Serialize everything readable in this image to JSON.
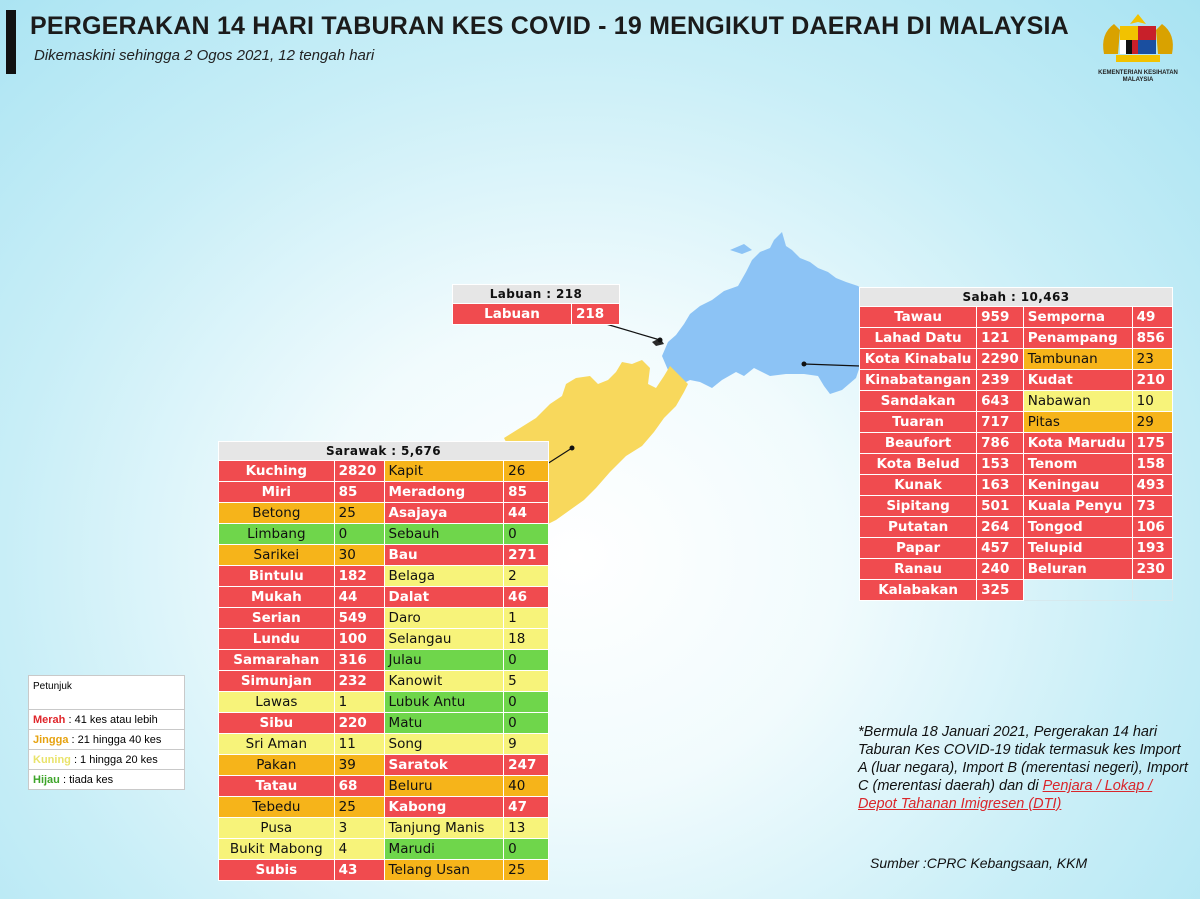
{
  "header": {
    "title": "PERGERAKAN 14 HARI TABURAN KES COVID - 19 MENGIKUT DAERAH DI MALAYSIA",
    "subtitle": "Dikemaskini sehingga 2 Ogos 2021, 12 tengah hari",
    "crest_caption": "KEMENTERIAN KESIHATAN MALAYSIA"
  },
  "colors": {
    "sabah_land": "#8cc3f5",
    "sarawak_land": "#f8d85c",
    "red": "#f04b4f",
    "orange": "#f6b41a",
    "yellow": "#f7f37a",
    "green": "#6fd64b"
  },
  "labuan": {
    "heading": "Labuan : 218",
    "rows": [
      {
        "name": "Labuan",
        "value": "218",
        "level": "red"
      }
    ]
  },
  "sabah": {
    "heading": "Sabah : 10,463",
    "rows": [
      [
        {
          "name": "Tawau",
          "value": "959",
          "level": "red"
        },
        {
          "name": "Semporna",
          "value": "49",
          "level": "red"
        }
      ],
      [
        {
          "name": "Lahad Datu",
          "value": "121",
          "level": "red"
        },
        {
          "name": "Penampang",
          "value": "856",
          "level": "red"
        }
      ],
      [
        {
          "name": "Kota Kinabalu",
          "value": "2290",
          "level": "red"
        },
        {
          "name": "Tambunan",
          "value": "23",
          "level": "orange"
        }
      ],
      [
        {
          "name": "Kinabatangan",
          "value": "239",
          "level": "red"
        },
        {
          "name": "Kudat",
          "value": "210",
          "level": "red"
        }
      ],
      [
        {
          "name": "Sandakan",
          "value": "643",
          "level": "red"
        },
        {
          "name": "Nabawan",
          "value": "10",
          "level": "yellow"
        }
      ],
      [
        {
          "name": "Tuaran",
          "value": "717",
          "level": "red"
        },
        {
          "name": "Pitas",
          "value": "29",
          "level": "orange"
        }
      ],
      [
        {
          "name": "Beaufort",
          "value": "786",
          "level": "red"
        },
        {
          "name": "Kota Marudu",
          "value": "175",
          "level": "red"
        }
      ],
      [
        {
          "name": "Kota Belud",
          "value": "153",
          "level": "red"
        },
        {
          "name": "Tenom",
          "value": "158",
          "level": "red"
        }
      ],
      [
        {
          "name": "Kunak",
          "value": "163",
          "level": "red"
        },
        {
          "name": "Keningau",
          "value": "493",
          "level": "red"
        }
      ],
      [
        {
          "name": "Sipitang",
          "value": "501",
          "level": "red"
        },
        {
          "name": "Kuala Penyu",
          "value": "73",
          "level": "red"
        }
      ],
      [
        {
          "name": "Putatan",
          "value": "264",
          "level": "red"
        },
        {
          "name": "Tongod",
          "value": "106",
          "level": "red"
        }
      ],
      [
        {
          "name": "Papar",
          "value": "457",
          "level": "red"
        },
        {
          "name": "Telupid",
          "value": "193",
          "level": "red"
        }
      ],
      [
        {
          "name": "Ranau",
          "value": "240",
          "level": "red"
        },
        {
          "name": "Beluran",
          "value": "230",
          "level": "red"
        }
      ],
      [
        {
          "name": "Kalabakan",
          "value": "325",
          "level": "red"
        },
        null
      ]
    ]
  },
  "sarawak": {
    "heading": "Sarawak : 5,676",
    "rows": [
      [
        {
          "name": "Kuching",
          "value": "2820",
          "level": "red"
        },
        {
          "name": "Kapit",
          "value": "26",
          "level": "orange"
        }
      ],
      [
        {
          "name": "Miri",
          "value": "85",
          "level": "red"
        },
        {
          "name": "Meradong",
          "value": "85",
          "level": "red"
        }
      ],
      [
        {
          "name": "Betong",
          "value": "25",
          "level": "orange"
        },
        {
          "name": "Asajaya",
          "value": "44",
          "level": "red"
        }
      ],
      [
        {
          "name": "Limbang",
          "value": "0",
          "level": "green"
        },
        {
          "name": "Sebauh",
          "value": "0",
          "level": "green"
        }
      ],
      [
        {
          "name": "Sarikei",
          "value": "30",
          "level": "orange"
        },
        {
          "name": "Bau",
          "value": "271",
          "level": "red"
        }
      ],
      [
        {
          "name": "Bintulu",
          "value": "182",
          "level": "red"
        },
        {
          "name": "Belaga",
          "value": "2",
          "level": "yellow"
        }
      ],
      [
        {
          "name": "Mukah",
          "value": "44",
          "level": "red"
        },
        {
          "name": "Dalat",
          "value": "46",
          "level": "red"
        }
      ],
      [
        {
          "name": "Serian",
          "value": "549",
          "level": "red"
        },
        {
          "name": "Daro",
          "value": "1",
          "level": "yellow"
        }
      ],
      [
        {
          "name": "Lundu",
          "value": "100",
          "level": "red"
        },
        {
          "name": "Selangau",
          "value": "18",
          "level": "yellow"
        }
      ],
      [
        {
          "name": "Samarahan",
          "value": "316",
          "level": "red"
        },
        {
          "name": "Julau",
          "value": "0",
          "level": "green"
        }
      ],
      [
        {
          "name": "Simunjan",
          "value": "232",
          "level": "red"
        },
        {
          "name": "Kanowit",
          "value": "5",
          "level": "yellow"
        }
      ],
      [
        {
          "name": "Lawas",
          "value": "1",
          "level": "yellow"
        },
        {
          "name": "Lubuk Antu",
          "value": "0",
          "level": "green"
        }
      ],
      [
        {
          "name": "Sibu",
          "value": "220",
          "level": "red"
        },
        {
          "name": "Matu",
          "value": "0",
          "level": "green"
        }
      ],
      [
        {
          "name": "Sri Aman",
          "value": "11",
          "level": "yellow"
        },
        {
          "name": "Song",
          "value": "9",
          "level": "yellow"
        }
      ],
      [
        {
          "name": "Pakan",
          "value": "39",
          "level": "orange"
        },
        {
          "name": "Saratok",
          "value": "247",
          "level": "red"
        }
      ],
      [
        {
          "name": "Tatau",
          "value": "68",
          "level": "red"
        },
        {
          "name": "Beluru",
          "value": "40",
          "level": "orange"
        }
      ],
      [
        {
          "name": "Tebedu",
          "value": "25",
          "level": "orange"
        },
        {
          "name": "Kabong",
          "value": "47",
          "level": "red"
        }
      ],
      [
        {
          "name": "Pusa",
          "value": "3",
          "level": "yellow"
        },
        {
          "name": "Tanjung Manis",
          "value": "13",
          "level": "yellow"
        }
      ],
      [
        {
          "name": "Bukit Mabong",
          "value": "4",
          "level": "yellow"
        },
        {
          "name": "Marudi",
          "value": "0",
          "level": "green"
        }
      ],
      [
        {
          "name": "Subis",
          "value": "43",
          "level": "red"
        },
        {
          "name": "Telang Usan",
          "value": "25",
          "level": "orange"
        }
      ]
    ]
  },
  "legend": {
    "title": "Petunjuk",
    "items": [
      {
        "label": "Merah",
        "desc": " : 41 kes atau lebih",
        "level": "red"
      },
      {
        "label": "Jingga",
        "desc": " : 21 hingga 40 kes",
        "level": "orange"
      },
      {
        "label": "Kuning",
        "desc": " : 1 hingga 20 kes",
        "level": "yellow"
      },
      {
        "label": "Hijau",
        "desc": " : tiada kes",
        "level": "green"
      }
    ]
  },
  "note": {
    "text": "*Bermula 18 Januari 2021, Pergerakan 14 hari Taburan Kes COVID-19 tidak termasuk kes Import A (luar negara), Import B (merentasi negeri), Import C (merentasi daerah) dan di ",
    "link": "Penjara / Lokap / Depot Tahanan Imigresen (DTI)"
  },
  "source": "Sumber :CPRC Kebangsaan,  KKM"
}
